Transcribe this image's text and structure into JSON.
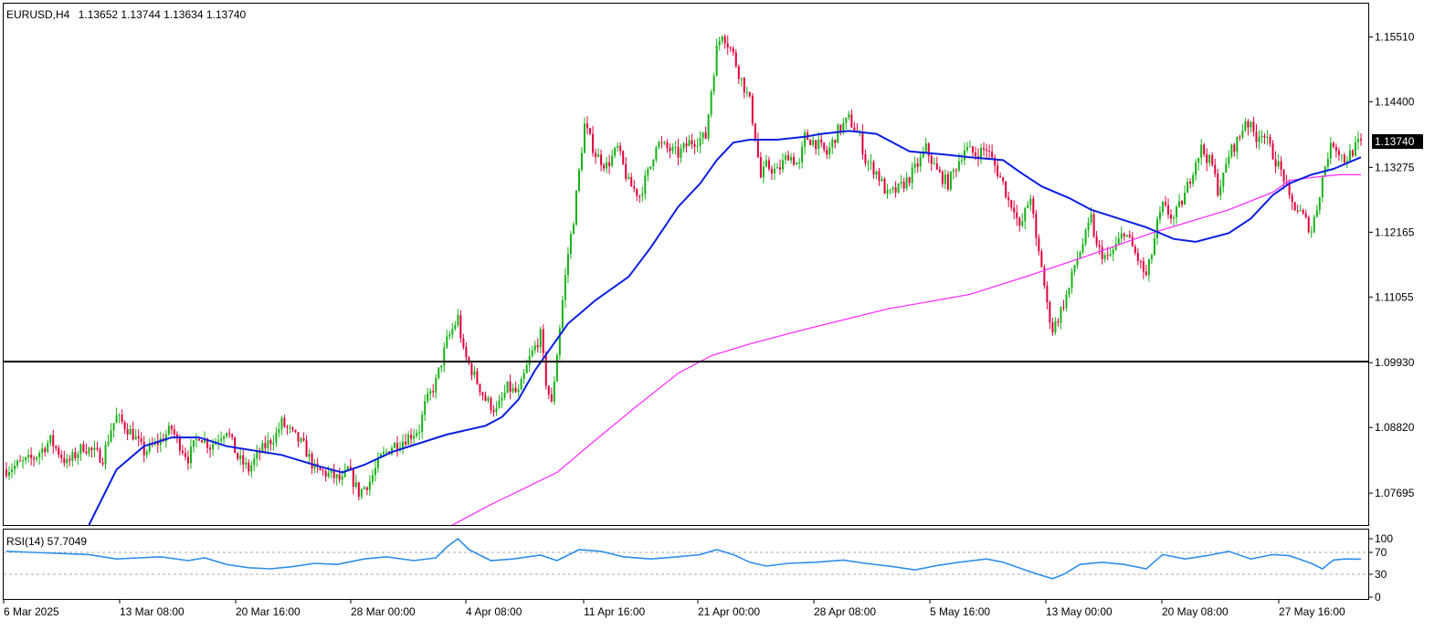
{
  "header": {
    "symbol": "EURUSD,H4",
    "ohlc": "1.13652 1.13744 1.13634 1.13740"
  },
  "colors": {
    "bull": "#16b116",
    "bear": "#e0003c",
    "ma_fast": "#0a1fe0",
    "ma_slow": "#ff33ff",
    "rsi": "#2e8ee8",
    "hline": "#000000"
  },
  "chart_data": [
    {
      "type": "candlestick",
      "symbol": "EURUSD",
      "timeframe": "H4",
      "ylim": [
        1.0715,
        1.1608
      ],
      "y_ticks": [
        "1.15510",
        "1.14400",
        "1.13275",
        "1.12165",
        "1.11055",
        "1.09930",
        "1.08820",
        "1.07695"
      ],
      "x_ticks": [
        "6 Mar 2025",
        "13 Mar 08:00",
        "20 Mar 16:00",
        "28 Mar 00:00",
        "4 Apr 08:00",
        "11 Apr 16:00",
        "21 Apr 00:00",
        "28 Apr 08:00",
        "5 May 16:00",
        "13 May 00:00",
        "20 May 08:00",
        "27 May 16:00"
      ],
      "last_price_label": "1.13740",
      "horizontal_line": 1.0995,
      "close_path": [
        [
          0,
          1.081
        ],
        [
          10,
          1.083
        ],
        [
          16,
          1.086
        ],
        [
          22,
          1.082
        ],
        [
          28,
          1.085
        ],
        [
          35,
          1.083
        ],
        [
          38,
          1.088
        ],
        [
          40,
          1.09
        ],
        [
          46,
          1.087
        ],
        [
          50,
          1.084
        ],
        [
          56,
          1.086
        ],
        [
          60,
          1.088
        ],
        [
          62,
          1.086
        ],
        [
          66,
          1.083
        ],
        [
          70,
          1.087
        ],
        [
          74,
          1.085
        ],
        [
          80,
          1.088
        ],
        [
          84,
          1.083
        ],
        [
          88,
          1.081
        ],
        [
          92,
          1.084
        ],
        [
          98,
          1.087
        ],
        [
          100,
          1.089
        ],
        [
          104,
          1.087
        ],
        [
          108,
          1.085
        ],
        [
          112,
          1.081
        ],
        [
          118,
          1.08
        ],
        [
          122,
          1.079
        ],
        [
          124,
          1.081
        ],
        [
          128,
          1.077
        ],
        [
          132,
          1.079
        ],
        [
          136,
          1.083
        ],
        [
          140,
          1.085
        ],
        [
          144,
          1.086
        ],
        [
          150,
          1.088
        ],
        [
          152,
          1.092
        ],
        [
          156,
          1.096
        ],
        [
          160,
          1.103
        ],
        [
          164,
          1.107
        ],
        [
          166,
          1.101
        ],
        [
          170,
          1.097
        ],
        [
          174,
          1.093
        ],
        [
          178,
          1.091
        ],
        [
          182,
          1.095
        ],
        [
          186,
          1.094
        ],
        [
          190,
          1.1
        ],
        [
          194,
          1.104
        ],
        [
          196,
          1.096
        ],
        [
          198,
          1.092
        ],
        [
          200,
          1.101
        ],
        [
          202,
          1.11
        ],
        [
          204,
          1.118
        ],
        [
          206,
          1.124
        ],
        [
          208,
          1.132
        ],
        [
          210,
          1.14
        ],
        [
          214,
          1.135
        ],
        [
          218,
          1.133
        ],
        [
          222,
          1.136
        ],
        [
          226,
          1.13
        ],
        [
          230,
          1.128
        ],
        [
          234,
          1.133
        ],
        [
          236,
          1.137
        ],
        [
          240,
          1.136
        ],
        [
          244,
          1.135
        ],
        [
          248,
          1.137
        ],
        [
          254,
          1.138
        ],
        [
          256,
          1.146
        ],
        [
          258,
          1.153
        ],
        [
          260,
          1.156
        ],
        [
          264,
          1.152
        ],
        [
          266,
          1.149
        ],
        [
          270,
          1.144
        ],
        [
          272,
          1.138
        ],
        [
          274,
          1.131
        ],
        [
          276,
          1.133
        ],
        [
          280,
          1.132
        ],
        [
          284,
          1.135
        ],
        [
          288,
          1.133
        ],
        [
          290,
          1.138
        ],
        [
          294,
          1.137
        ],
        [
          298,
          1.135
        ],
        [
          302,
          1.139
        ],
        [
          306,
          1.141
        ],
        [
          310,
          1.138
        ],
        [
          312,
          1.134
        ],
        [
          316,
          1.132
        ],
        [
          320,
          1.128
        ],
        [
          324,
          1.129
        ],
        [
          328,
          1.131
        ],
        [
          332,
          1.134
        ],
        [
          334,
          1.136
        ],
        [
          338,
          1.132
        ],
        [
          342,
          1.13
        ],
        [
          346,
          1.134
        ],
        [
          348,
          1.136
        ],
        [
          352,
          1.135
        ],
        [
          356,
          1.136
        ],
        [
          358,
          1.134
        ],
        [
          362,
          1.13
        ],
        [
          364,
          1.127
        ],
        [
          366,
          1.126
        ],
        [
          368,
          1.122
        ],
        [
          370,
          1.125
        ],
        [
          372,
          1.128
        ],
        [
          374,
          1.12
        ],
        [
          376,
          1.116
        ],
        [
          378,
          1.109
        ],
        [
          380,
          1.105
        ],
        [
          382,
          1.107
        ],
        [
          386,
          1.112
        ],
        [
          388,
          1.116
        ],
        [
          392,
          1.121
        ],
        [
          394,
          1.124
        ],
        [
          396,
          1.119
        ],
        [
          400,
          1.117
        ],
        [
          404,
          1.12
        ],
        [
          406,
          1.122
        ],
        [
          408,
          1.12
        ],
        [
          412,
          1.116
        ],
        [
          414,
          1.114
        ],
        [
          416,
          1.118
        ],
        [
          418,
          1.123
        ],
        [
          420,
          1.126
        ],
        [
          424,
          1.124
        ],
        [
          428,
          1.128
        ],
        [
          432,
          1.134
        ],
        [
          434,
          1.136
        ],
        [
          438,
          1.133
        ],
        [
          440,
          1.129
        ],
        [
          442,
          1.131
        ],
        [
          444,
          1.135
        ],
        [
          448,
          1.138
        ],
        [
          450,
          1.141
        ],
        [
          454,
          1.138
        ],
        [
          456,
          1.139
        ],
        [
          460,
          1.135
        ],
        [
          464,
          1.131
        ],
        [
          466,
          1.127
        ],
        [
          470,
          1.125
        ],
        [
          474,
          1.122
        ],
        [
          476,
          1.126
        ],
        [
          478,
          1.131
        ],
        [
          480,
          1.135
        ],
        [
          482,
          1.137
        ],
        [
          486,
          1.134
        ],
        [
          488,
          1.135
        ],
        [
          492,
          1.1374
        ]
      ],
      "ma_fast_path": [
        [
          30,
          1.0715
        ],
        [
          40,
          1.081
        ],
        [
          50,
          1.085
        ],
        [
          60,
          1.0865
        ],
        [
          70,
          1.0865
        ],
        [
          80,
          1.085
        ],
        [
          100,
          1.0835
        ],
        [
          114,
          1.0815
        ],
        [
          122,
          1.0805
        ],
        [
          130,
          1.0818
        ],
        [
          140,
          1.084
        ],
        [
          150,
          1.0855
        ],
        [
          160,
          1.087
        ],
        [
          174,
          1.0885
        ],
        [
          180,
          1.09
        ],
        [
          186,
          1.093
        ],
        [
          192,
          1.098
        ],
        [
          204,
          1.106
        ],
        [
          214,
          1.11
        ],
        [
          226,
          1.114
        ],
        [
          234,
          1.119
        ],
        [
          244,
          1.126
        ],
        [
          252,
          1.13
        ],
        [
          258,
          1.134
        ],
        [
          264,
          1.137
        ],
        [
          270,
          1.1375
        ],
        [
          280,
          1.1375
        ],
        [
          290,
          1.138
        ],
        [
          296,
          1.1385
        ],
        [
          306,
          1.139
        ],
        [
          316,
          1.1385
        ],
        [
          328,
          1.1355
        ],
        [
          340,
          1.135
        ],
        [
          350,
          1.1345
        ],
        [
          362,
          1.134
        ],
        [
          368,
          1.132
        ],
        [
          376,
          1.1295
        ],
        [
          386,
          1.1275
        ],
        [
          394,
          1.1255
        ],
        [
          404,
          1.124
        ],
        [
          414,
          1.1225
        ],
        [
          424,
          1.1205
        ],
        [
          432,
          1.12
        ],
        [
          444,
          1.1215
        ],
        [
          452,
          1.124
        ],
        [
          460,
          1.128
        ],
        [
          466,
          1.13
        ],
        [
          474,
          1.1315
        ],
        [
          482,
          1.1325
        ],
        [
          492,
          1.1345
        ]
      ],
      "ma_slow_path": [
        [
          162,
          1.0715
        ],
        [
          176,
          1.075
        ],
        [
          200,
          1.0805
        ],
        [
          210,
          1.0845
        ],
        [
          228,
          1.0915
        ],
        [
          244,
          1.0975
        ],
        [
          256,
          1.1005
        ],
        [
          270,
          1.1025
        ],
        [
          290,
          1.105
        ],
        [
          320,
          1.1085
        ],
        [
          350,
          1.111
        ],
        [
          370,
          1.114
        ],
        [
          392,
          1.1175
        ],
        [
          416,
          1.1215
        ],
        [
          444,
          1.1255
        ],
        [
          460,
          1.1285
        ],
        [
          466,
          1.1305
        ],
        [
          474,
          1.131
        ],
        [
          484,
          1.1315
        ],
        [
          492,
          1.1315
        ]
      ]
    },
    {
      "type": "line",
      "name": "RSI(14)",
      "label": "RSI(14) 57.7049",
      "last_value": 57.7049,
      "ylim": [
        0,
        100
      ],
      "y_ticks": [
        "100",
        "70",
        "30",
        "0"
      ],
      "levels": [
        70,
        30
      ],
      "path": [
        [
          0,
          72
        ],
        [
          10,
          70
        ],
        [
          20,
          68
        ],
        [
          30,
          66
        ],
        [
          40,
          58
        ],
        [
          48,
          60
        ],
        [
          56,
          62
        ],
        [
          66,
          55
        ],
        [
          72,
          60
        ],
        [
          80,
          48
        ],
        [
          88,
          42
        ],
        [
          96,
          40
        ],
        [
          104,
          44
        ],
        [
          112,
          50
        ],
        [
          120,
          48
        ],
        [
          124,
          52
        ],
        [
          130,
          58
        ],
        [
          138,
          62
        ],
        [
          148,
          55
        ],
        [
          156,
          60
        ],
        [
          160,
          80
        ],
        [
          164,
          95
        ],
        [
          168,
          75
        ],
        [
          176,
          55
        ],
        [
          184,
          58
        ],
        [
          194,
          65
        ],
        [
          200,
          55
        ],
        [
          208,
          75
        ],
        [
          216,
          72
        ],
        [
          224,
          62
        ],
        [
          234,
          58
        ],
        [
          244,
          62
        ],
        [
          252,
          66
        ],
        [
          258,
          75
        ],
        [
          264,
          66
        ],
        [
          270,
          52
        ],
        [
          276,
          45
        ],
        [
          284,
          50
        ],
        [
          294,
          52
        ],
        [
          304,
          56
        ],
        [
          312,
          50
        ],
        [
          322,
          44
        ],
        [
          330,
          38
        ],
        [
          338,
          46
        ],
        [
          346,
          52
        ],
        [
          356,
          58
        ],
        [
          362,
          52
        ],
        [
          370,
          38
        ],
        [
          376,
          28
        ],
        [
          380,
          22
        ],
        [
          384,
          30
        ],
        [
          390,
          48
        ],
        [
          398,
          52
        ],
        [
          406,
          48
        ],
        [
          414,
          40
        ],
        [
          420,
          66
        ],
        [
          428,
          58
        ],
        [
          436,
          64
        ],
        [
          444,
          72
        ],
        [
          452,
          58
        ],
        [
          460,
          66
        ],
        [
          466,
          64
        ],
        [
          474,
          50
        ],
        [
          478,
          40
        ],
        [
          482,
          56
        ],
        [
          486,
          58
        ],
        [
          492,
          57.7
        ]
      ]
    }
  ]
}
